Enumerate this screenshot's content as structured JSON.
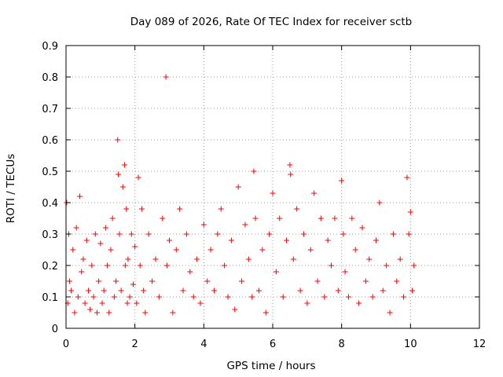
{
  "chart_data": {
    "type": "scatter",
    "title": "Day 089 of 2026, Rate Of TEC Index for receiver sctb",
    "xlabel": "GPS time / hours",
    "ylabel": "ROTI / TECUs",
    "xlim": [
      0,
      12
    ],
    "ylim": [
      0,
      0.9
    ],
    "xticks": [
      "0",
      "2",
      "4",
      "6",
      "8",
      "10",
      "12"
    ],
    "xtick_values": [
      0,
      2,
      4,
      6,
      8,
      10,
      12
    ],
    "yticks": [
      "0",
      "0.1",
      "0.2",
      "0.3",
      "0.4",
      "0.5",
      "0.6",
      "0.7",
      "0.8",
      "0.9"
    ],
    "ytick_values": [
      0,
      0.1,
      0.2,
      0.3,
      0.4,
      0.5,
      0.6,
      0.7,
      0.8,
      0.9
    ],
    "grid": true,
    "marker": "plus",
    "color": "#ff0000",
    "series": [
      {
        "x": [
          0.02,
          0.05,
          0.08,
          0.1,
          0.15,
          0.2,
          0.25,
          0.3,
          0.35,
          0.4,
          0.45,
          0.5,
          0.55,
          0.6,
          0.65,
          0.7,
          0.75,
          0.8,
          0.85,
          0.9,
          0.95,
          1.0,
          1.05,
          1.1,
          1.15,
          1.2,
          1.25,
          1.3,
          1.35,
          1.4,
          1.45,
          1.5,
          1.52,
          1.55,
          1.6,
          1.65,
          1.7,
          1.72,
          1.75,
          1.78,
          1.8,
          1.85,
          1.9,
          1.95,
          2.0,
          2.05,
          2.1,
          2.15,
          2.2,
          2.25,
          2.3,
          2.4,
          2.5,
          2.6,
          2.7,
          2.8,
          2.9,
          2.93,
          3.0,
          3.1,
          3.2,
          3.3,
          3.4,
          3.5,
          3.6,
          3.7,
          3.8,
          3.9,
          4.0,
          4.1,
          4.2,
          4.3,
          4.4,
          4.5,
          4.6,
          4.7,
          4.8,
          4.9,
          5.0,
          5.1,
          5.2,
          5.3,
          5.4,
          5.45,
          5.5,
          5.6,
          5.7,
          5.8,
          5.9,
          6.0,
          6.1,
          6.2,
          6.3,
          6.4,
          6.5,
          6.52,
          6.6,
          6.7,
          6.8,
          6.9,
          7.0,
          7.1,
          7.2,
          7.3,
          7.4,
          7.5,
          7.6,
          7.7,
          7.8,
          7.9,
          8.0,
          8.05,
          8.1,
          8.2,
          8.3,
          8.4,
          8.5,
          8.6,
          8.7,
          8.8,
          8.9,
          9.0,
          9.1,
          9.2,
          9.3,
          9.4,
          9.5,
          9.6,
          9.7,
          9.8,
          9.9,
          9.95,
          10.0,
          10.05,
          10.1
        ],
        "y": [
          0.4,
          0.08,
          0.3,
          0.15,
          0.12,
          0.25,
          0.05,
          0.32,
          0.1,
          0.42,
          0.18,
          0.22,
          0.08,
          0.28,
          0.12,
          0.06,
          0.2,
          0.1,
          0.3,
          0.05,
          0.15,
          0.27,
          0.08,
          0.12,
          0.32,
          0.2,
          0.05,
          0.25,
          0.35,
          0.1,
          0.15,
          0.6,
          0.49,
          0.3,
          0.12,
          0.45,
          0.52,
          0.2,
          0.38,
          0.08,
          0.22,
          0.1,
          0.3,
          0.14,
          0.26,
          0.08,
          0.48,
          0.2,
          0.38,
          0.12,
          0.05,
          0.3,
          0.15,
          0.22,
          0.1,
          0.35,
          0.8,
          0.2,
          0.28,
          0.05,
          0.25,
          0.38,
          0.12,
          0.3,
          0.18,
          0.1,
          0.22,
          0.08,
          0.33,
          0.15,
          0.25,
          0.12,
          0.3,
          0.38,
          0.2,
          0.1,
          0.28,
          0.06,
          0.45,
          0.15,
          0.33,
          0.22,
          0.1,
          0.5,
          0.35,
          0.12,
          0.25,
          0.05,
          0.3,
          0.43,
          0.18,
          0.35,
          0.1,
          0.28,
          0.52,
          0.49,
          0.22,
          0.38,
          0.12,
          0.3,
          0.08,
          0.25,
          0.43,
          0.15,
          0.35,
          0.1,
          0.28,
          0.2,
          0.35,
          0.12,
          0.47,
          0.3,
          0.18,
          0.1,
          0.35,
          0.25,
          0.08,
          0.32,
          0.15,
          0.22,
          0.1,
          0.28,
          0.4,
          0.12,
          0.2,
          0.05,
          0.3,
          0.15,
          0.22,
          0.1,
          0.48,
          0.3,
          0.37,
          0.12,
          0.2
        ]
      }
    ]
  }
}
